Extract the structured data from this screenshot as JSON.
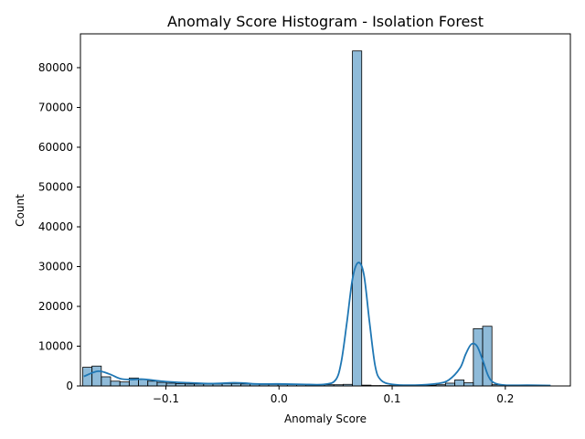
{
  "chart_data": {
    "type": "bar",
    "title": "Anomaly Score Histogram - Isolation Forest",
    "xlabel": "Anomaly Score",
    "ylabel": "Count",
    "xlim": [
      -0.1755,
      0.2575
    ],
    "ylim": [
      0,
      88500
    ],
    "xticks": [
      -0.1,
      0.0,
      0.1,
      0.2
    ],
    "xtick_labels": [
      "−0.1",
      "0.0",
      "0.1",
      "0.2"
    ],
    "yticks": [
      0,
      10000,
      20000,
      30000,
      40000,
      50000,
      60000,
      70000,
      80000
    ],
    "ytick_labels": [
      "0",
      "10000",
      "20000",
      "30000",
      "40000",
      "50000",
      "60000",
      "70000",
      "80000"
    ],
    "grid": false,
    "bins": {
      "start": -0.1735,
      "width": 0.00822,
      "counts": [
        4700,
        5000,
        2300,
        1200,
        1000,
        2000,
        1600,
        1200,
        900,
        700,
        600,
        500,
        500,
        500,
        500,
        600,
        600,
        500,
        500,
        400,
        400,
        400,
        400,
        400,
        300,
        300,
        300,
        300,
        400,
        84200,
        200,
        100,
        100,
        100,
        100,
        100,
        100,
        200,
        300,
        700,
        1500,
        800,
        14400,
        15000,
        300,
        100,
        100,
        100,
        100,
        100
      ]
    },
    "kde": {
      "x": [
        -0.1725,
        -0.16,
        -0.15,
        -0.14,
        -0.13,
        -0.12,
        -0.1,
        -0.08,
        -0.06,
        -0.04,
        -0.03,
        -0.02,
        0.0,
        0.02,
        0.04,
        0.05,
        0.055,
        0.06,
        0.065,
        0.07,
        0.075,
        0.08,
        0.085,
        0.09,
        0.1,
        0.12,
        0.14,
        0.15,
        0.16,
        0.165,
        0.17,
        0.175,
        0.18,
        0.185,
        0.19,
        0.2,
        0.22,
        0.24
      ],
      "y": [
        2400,
        3700,
        3000,
        1800,
        1600,
        1700,
        1100,
        800,
        600,
        800,
        700,
        500,
        500,
        400,
        400,
        1500,
        6000,
        16000,
        27000,
        31000,
        28000,
        16000,
        5000,
        1500,
        400,
        200,
        600,
        1500,
        4500,
        8000,
        10500,
        10000,
        6500,
        2500,
        800,
        200,
        200,
        100
      ],
      "color": "#1f77b4"
    },
    "bar_color": "#1f77b4"
  }
}
